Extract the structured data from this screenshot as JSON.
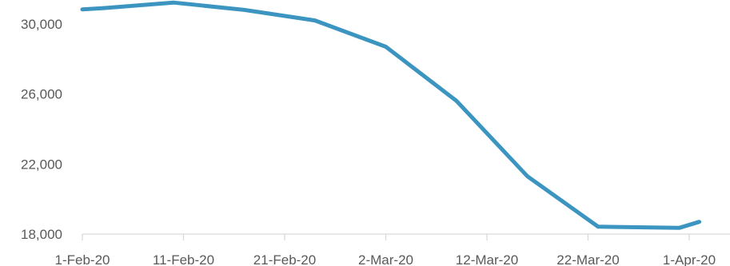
{
  "chart_data": {
    "type": "line",
    "title": "",
    "xlabel": "",
    "ylabel": "",
    "ylim": [
      18000,
      31000
    ],
    "y_ticks": [
      18000,
      22000,
      26000,
      30000
    ],
    "y_tick_labels": [
      "18,000",
      "22,000",
      "26,000",
      "30,000"
    ],
    "x_ticks": [
      "2020-02-01",
      "2020-02-11",
      "2020-02-21",
      "2020-03-02",
      "2020-03-12",
      "2020-03-22",
      "2020-04-01"
    ],
    "x_tick_labels": [
      "1-Feb-20",
      "11-Feb-20",
      "21-Feb-20",
      "2-Mar-20",
      "12-Mar-20",
      "22-Mar-20",
      "1-Apr-20"
    ],
    "grid": false,
    "legend": "none",
    "line_color": "#3B95C0",
    "axis_color": "#D9D9D9",
    "label_color": "#595959",
    "series": [
      {
        "x": [
          "2020-02-01",
          "2020-02-03",
          "2020-02-10",
          "2020-02-17",
          "2020-02-24",
          "2020-03-02",
          "2020-03-09",
          "2020-03-16",
          "2020-03-23",
          "2020-03-31",
          "2020-04-02"
        ],
        "values": [
          30830,
          30900,
          31220,
          30800,
          30200,
          28700,
          25600,
          21300,
          18420,
          18350,
          18700
        ]
      }
    ]
  }
}
